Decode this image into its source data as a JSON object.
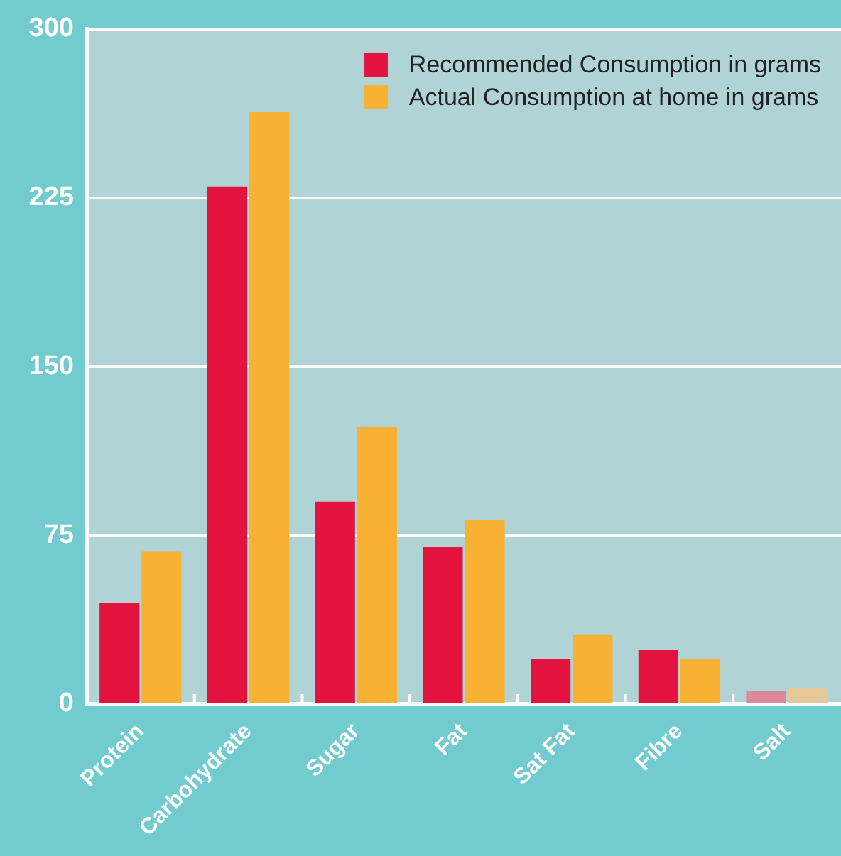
{
  "chart_data": {
    "type": "bar",
    "categories": [
      "Protein",
      "Carbohydrate",
      "Sugar",
      "Fat",
      "Sat Fat",
      "Fibre",
      "Salt"
    ],
    "series": [
      {
        "name": "Recommended Consumption in grams",
        "color": "#e4133d",
        "colors": [
          "#e4133d",
          "#e4133d",
          "#e4133d",
          "#e4133d",
          "#e4133d",
          "#e4133d",
          "#dc8a9a"
        ],
        "values": [
          45,
          230,
          90,
          70,
          20,
          24,
          6
        ]
      },
      {
        "name": "Actual Consumption at home in grams",
        "color": "#f8b133",
        "colors": [
          "#f8b133",
          "#f8b133",
          "#f8b133",
          "#f8b133",
          "#f8b133",
          "#f8b133",
          "#e5c99b"
        ],
        "values": [
          68,
          263,
          123,
          82,
          31,
          20,
          7
        ]
      }
    ],
    "ylim": [
      0,
      300
    ],
    "yticks": [
      0,
      75,
      150,
      225,
      300
    ],
    "grid": "y",
    "legend": "top right"
  }
}
